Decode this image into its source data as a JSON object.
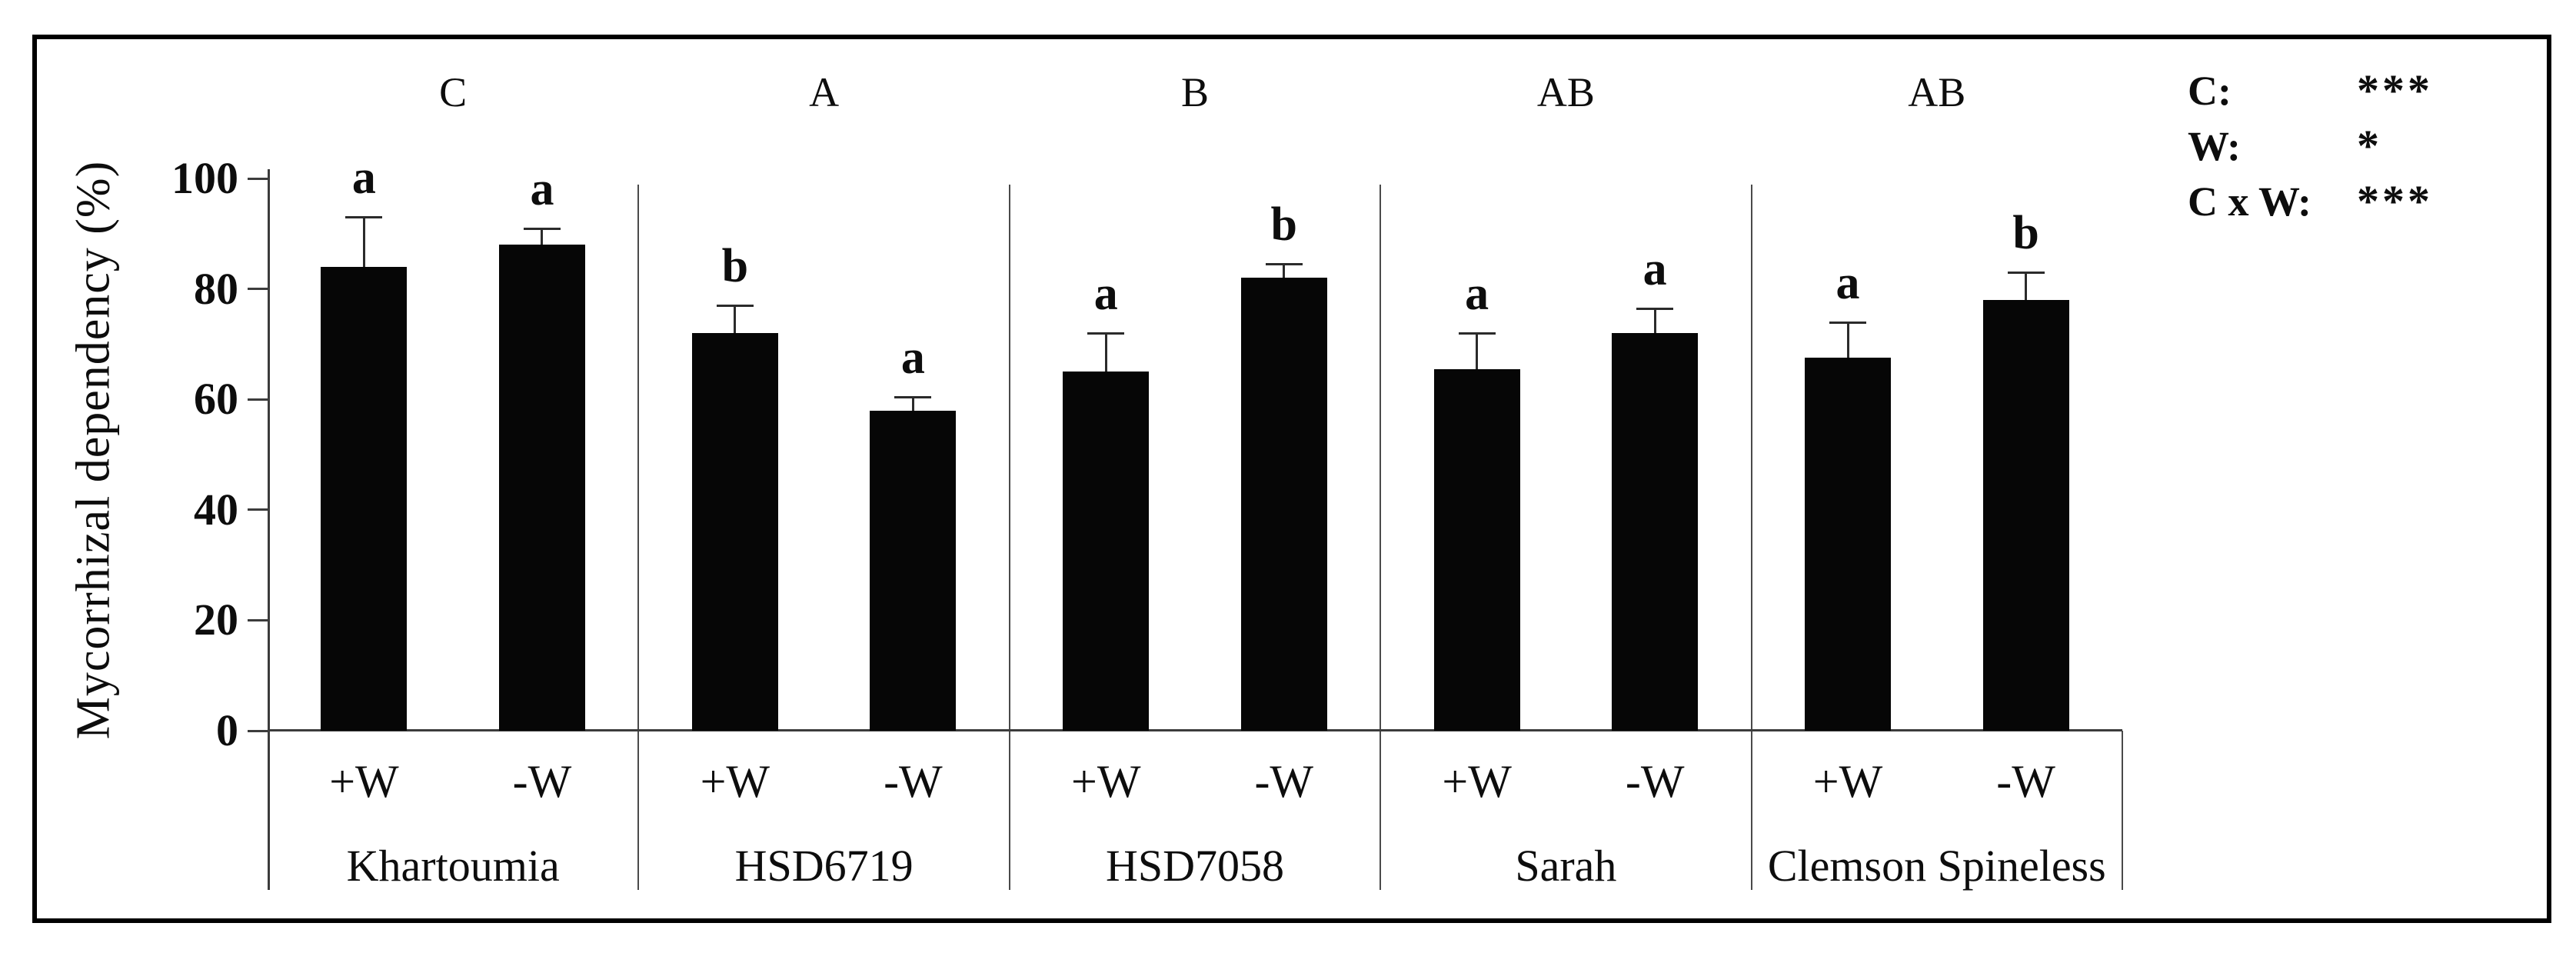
{
  "colors": {
    "background": "#ffffff",
    "bar": "#060606",
    "axis": "#3c3c3c",
    "separator": "#4a4a4a",
    "error_bar": "#2b2b2b",
    "text": "#0d0d0d",
    "border": "#000000"
  },
  "chart_data": {
    "type": "bar",
    "title": "",
    "ylabel": "Mycorrhizal dependency (%)",
    "xlabel": "",
    "ylim": [
      0,
      100
    ],
    "yticks": [
      0,
      20,
      40,
      60,
      80,
      100
    ],
    "grid": false,
    "legend_position": "top-right",
    "categories": [
      "Khartoumia",
      "HSD6719",
      "HSD7058",
      "Sarah",
      "Clemson Spineless"
    ],
    "group_significance": [
      "C",
      "A",
      "B",
      "AB",
      "AB"
    ],
    "treatments": [
      "+W",
      "-W"
    ],
    "series": [
      {
        "name": "+W",
        "values": [
          84,
          72,
          65,
          65.5,
          67.5
        ],
        "errors_plus": [
          9,
          5,
          7,
          6.5,
          6.5
        ],
        "letters": [
          "a",
          "b",
          "a",
          "a",
          "a"
        ]
      },
      {
        "name": "-W",
        "values": [
          88,
          58,
          82,
          72,
          78
        ],
        "errors_plus": [
          3,
          2.5,
          2.5,
          4.5,
          5
        ],
        "letters": [
          "a",
          "a",
          "b",
          "a",
          "b"
        ]
      }
    ],
    "significance_legend": [
      {
        "factor": "C:",
        "stars": "***"
      },
      {
        "factor": "W:",
        "stars": "*"
      },
      {
        "factor": "C x W:",
        "stars": "***"
      }
    ]
  }
}
